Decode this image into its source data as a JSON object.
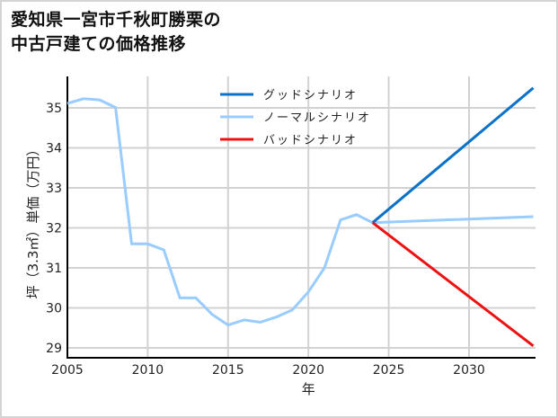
{
  "title_line1": "愛知県一宮市千秋町勝栗の",
  "title_line2": "中古戸建ての価格推移",
  "xlabel": "年",
  "ylabel": "坪（3.3㎡）単価（万円）",
  "legend": [
    {
      "label": "グッドシナリオ",
      "color": "#0a72c8"
    },
    {
      "label": "ノーマルシナリオ",
      "color": "#99ccff"
    },
    {
      "label": "バッドシナリオ",
      "color": "#ee1111"
    }
  ],
  "chart_data": {
    "type": "line",
    "title": "愛知県一宮市千秋町勝栗の中古戸建ての価格推移",
    "xlabel": "年",
    "ylabel": "坪（3.3㎡）単価（万円）",
    "xlim": [
      2005,
      2034
    ],
    "ylim": [
      28.8,
      35.8
    ],
    "xticks": [
      2005,
      2010,
      2015,
      2020,
      2025,
      2030
    ],
    "yticks": [
      29,
      30,
      31,
      32,
      33,
      34,
      35
    ],
    "grid": true,
    "legend_position": "upper center",
    "series": [
      {
        "name": "ノーマルシナリオ",
        "color": "#99ccff",
        "x": [
          2005,
          2006,
          2007,
          2008,
          2009,
          2010,
          2011,
          2012,
          2013,
          2014,
          2015,
          2016,
          2017,
          2018,
          2019,
          2020,
          2021,
          2022,
          2023,
          2024,
          2034
        ],
        "values": [
          35.11,
          35.23,
          35.2,
          35.01,
          31.6,
          31.6,
          31.45,
          30.25,
          30.25,
          29.84,
          29.57,
          29.7,
          29.64,
          29.77,
          29.95,
          30.4,
          31.0,
          32.2,
          32.33,
          32.13,
          32.28
        ]
      },
      {
        "name": "グッドシナリオ",
        "color": "#0a72c8",
        "x": [
          2024,
          2034
        ],
        "values": [
          32.13,
          35.5
        ]
      },
      {
        "name": "バッドシナリオ",
        "color": "#ee1111",
        "x": [
          2024,
          2034
        ],
        "values": [
          32.13,
          29.05
        ]
      }
    ]
  }
}
